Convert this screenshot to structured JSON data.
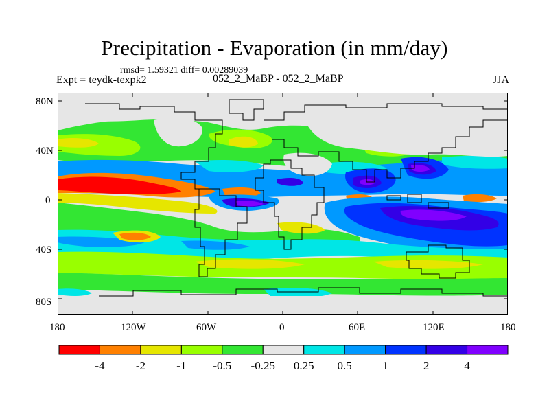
{
  "title": "Precipitation - Evaporation (in mm/day)",
  "stats_line": "rmsd= 1.59321 diff= 0.00289039",
  "experiment_label": "Expt = teydk-texpk2",
  "experiment_name": "052_2_MaBP - 052_2_MaBP",
  "season": "JJA",
  "map": {
    "lat_ticks": [
      "80N",
      "40N",
      "0",
      "40S",
      "80S"
    ],
    "lon_ticks": [
      "180",
      "120W",
      "60W",
      "0",
      "60E",
      "120E",
      "180"
    ]
  },
  "colorbar": {
    "labels": [
      "-4",
      "-2",
      "-1",
      "-0.5",
      "-0.25",
      "0.25",
      "0.5",
      "1",
      "2",
      "4"
    ],
    "colors": [
      "#ff0000",
      "#ff8000",
      "#e6e600",
      "#99ff00",
      "#33e633",
      "#e6e6e6",
      "#00e6e6",
      "#0099ff",
      "#0033ff",
      "#3300e6",
      "#8000ff"
    ]
  },
  "legend_colors": {
    "strong_negative": "#ff0000",
    "negative": "#ff8000",
    "weak_negative": "#e6e600",
    "slight_negative": "#99ff00",
    "near_neutral_neg": "#33e633",
    "neutral": "#e6e6e6",
    "near_neutral_pos": "#00e6e6",
    "slight_positive": "#0099ff",
    "positive": "#0033ff",
    "strong_positive": "#3300e6",
    "max_positive": "#8000ff"
  }
}
